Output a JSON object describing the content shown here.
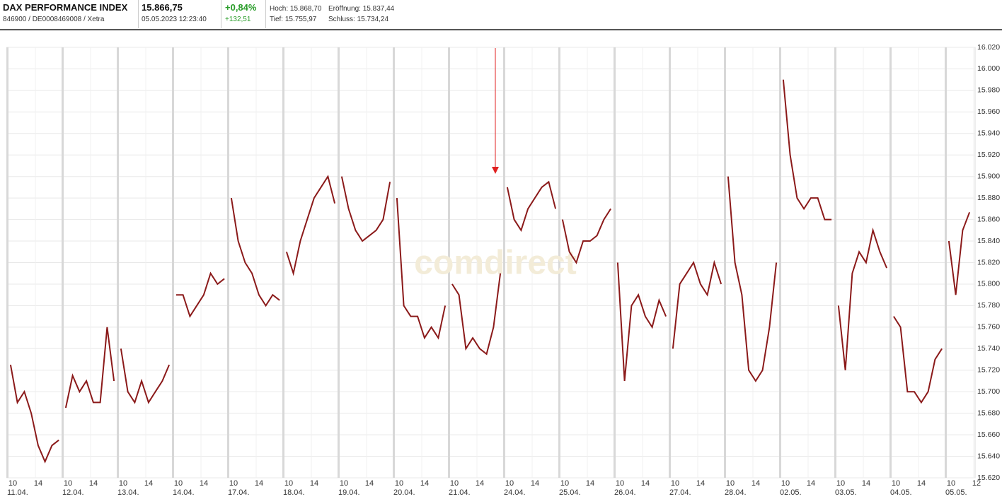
{
  "header": {
    "title": "DAX PERFORMANCE INDEX",
    "ident": "846900 / DE0008469008 / Xetra",
    "price": "15.866,75",
    "timestamp": "05.05.2023 12:23:40",
    "change_pct": "+0,84%",
    "change_abs": "+132,51",
    "high": "Hoch: 15.868,70",
    "open": "Eröffnung: 15.837,44",
    "low": "Tief: 15.755,97",
    "close": "Schluss: 15.734,24"
  },
  "watermark": "comdirect",
  "chart_data": {
    "type": "line",
    "color": "#8b1a1a",
    "grid": true,
    "ylim": [
      15620,
      16020
    ],
    "yticks": [
      {
        "value": 15620,
        "label": "15.620"
      },
      {
        "value": 15640,
        "label": "15.640"
      },
      {
        "value": 15660,
        "label": "15.660"
      },
      {
        "value": 15680,
        "label": "15.680"
      },
      {
        "value": 15700,
        "label": "15.700"
      },
      {
        "value": 15720,
        "label": "15.720"
      },
      {
        "value": 15740,
        "label": "15.740"
      },
      {
        "value": 15760,
        "label": "15.760"
      },
      {
        "value": 15780,
        "label": "15.780"
      },
      {
        "value": 15800,
        "label": "15.800"
      },
      {
        "value": 15820,
        "label": "15.820"
      },
      {
        "value": 15840,
        "label": "15.840"
      },
      {
        "value": 15860,
        "label": "15.860"
      },
      {
        "value": 15880,
        "label": "15.880"
      },
      {
        "value": 15900,
        "label": "15.900"
      },
      {
        "value": 15920,
        "label": "15.920"
      },
      {
        "value": 15940,
        "label": "15.940"
      },
      {
        "value": 15960,
        "label": "15.960"
      },
      {
        "value": 15980,
        "label": "15.980"
      },
      {
        "value": 16000,
        "label": "16.000"
      },
      {
        "value": 16020,
        "label": "16.020"
      }
    ],
    "days": [
      {
        "date": "11.04.",
        "hours": [
          "10",
          "14"
        ],
        "values": [
          15725,
          15690,
          15700,
          15680,
          15650,
          15635,
          15650,
          15655
        ]
      },
      {
        "date": "12.04.",
        "hours": [
          "10",
          "14"
        ],
        "values": [
          15685,
          15715,
          15700,
          15710,
          15690,
          15690,
          15760,
          15710
        ]
      },
      {
        "date": "13.04.",
        "hours": [
          "10",
          "14"
        ],
        "values": [
          15740,
          15700,
          15690,
          15710,
          15690,
          15700,
          15710,
          15725
        ]
      },
      {
        "date": "14.04.",
        "hours": [
          "10",
          "14"
        ],
        "values": [
          15790,
          15790,
          15770,
          15780,
          15790,
          15810,
          15800,
          15805
        ]
      },
      {
        "date": "17.04.",
        "hours": [
          "10",
          "14"
        ],
        "values": [
          15880,
          15840,
          15820,
          15810,
          15790,
          15780,
          15790,
          15785
        ]
      },
      {
        "date": "18.04.",
        "hours": [
          "10",
          "14"
        ],
        "values": [
          15830,
          15810,
          15840,
          15860,
          15880,
          15890,
          15900,
          15875
        ]
      },
      {
        "date": "19.04.",
        "hours": [
          "10",
          "14"
        ],
        "values": [
          15900,
          15870,
          15850,
          15840,
          15845,
          15850,
          15860,
          15895
        ]
      },
      {
        "date": "20.04.",
        "hours": [
          "10",
          "14"
        ],
        "values": [
          15880,
          15780,
          15770,
          15770,
          15750,
          15760,
          15750,
          15780
        ]
      },
      {
        "date": "21.04.",
        "hours": [
          "10",
          "14"
        ],
        "values": [
          15800,
          15790,
          15740,
          15750,
          15740,
          15735,
          15760,
          15810
        ]
      },
      {
        "date": "24.04.",
        "hours": [
          "10",
          "14"
        ],
        "values": [
          15890,
          15860,
          15850,
          15870,
          15880,
          15890,
          15895,
          15870
        ]
      },
      {
        "date": "25.04.",
        "hours": [
          "10",
          "14"
        ],
        "values": [
          15860,
          15830,
          15820,
          15840,
          15840,
          15845,
          15860,
          15870
        ]
      },
      {
        "date": "26.04.",
        "hours": [
          "10",
          "14"
        ],
        "values": [
          15820,
          15710,
          15780,
          15790,
          15770,
          15760,
          15785,
          15770
        ]
      },
      {
        "date": "27.04.",
        "hours": [
          "10",
          "14"
        ],
        "values": [
          15740,
          15800,
          15810,
          15820,
          15800,
          15790,
          15820,
          15800
        ]
      },
      {
        "date": "28.04.",
        "hours": [
          "10",
          "14"
        ],
        "values": [
          15900,
          15820,
          15790,
          15720,
          15710,
          15720,
          15760,
          15820
        ]
      },
      {
        "date": "02.05.",
        "hours": [
          "10",
          "14"
        ],
        "values": [
          15990,
          15920,
          15880,
          15870,
          15880,
          15880,
          15860,
          15860
        ]
      },
      {
        "date": "03.05.",
        "hours": [
          "10",
          "14"
        ],
        "values": [
          15780,
          15720,
          15810,
          15830,
          15820,
          15850,
          15830,
          15815
        ]
      },
      {
        "date": "04.05.",
        "hours": [
          "10",
          "14"
        ],
        "values": [
          15770,
          15760,
          15700,
          15700,
          15690,
          15700,
          15730,
          15740
        ]
      },
      {
        "date": "05.05.",
        "hours": [
          "10",
          "12"
        ],
        "values": [
          15840,
          15790,
          15850,
          15866.75
        ]
      }
    ]
  }
}
